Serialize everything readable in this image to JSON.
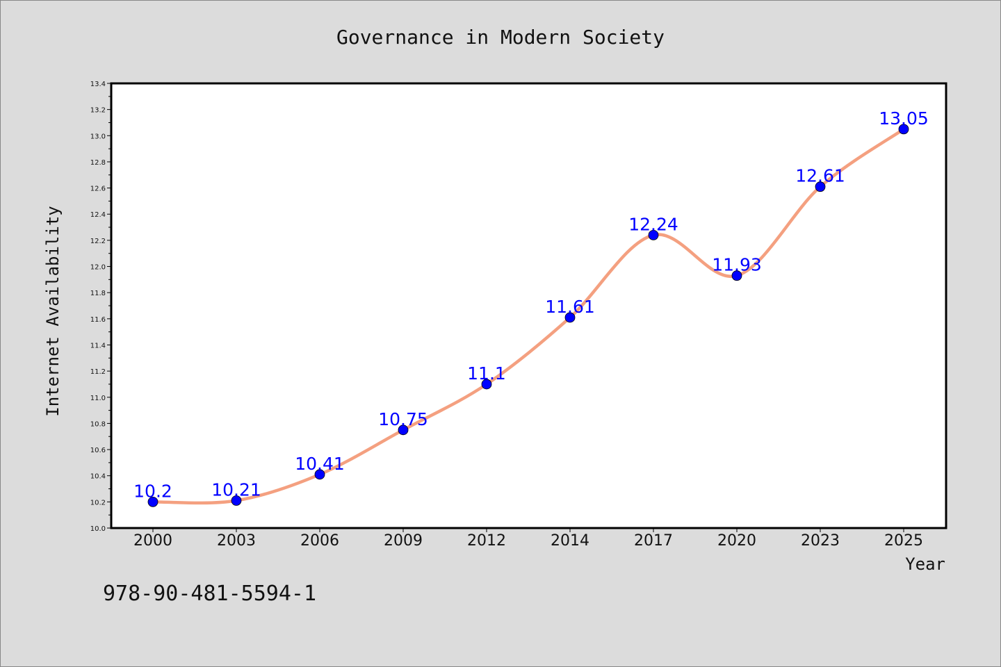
{
  "chart_data": {
    "type": "line",
    "title": "Governance in Modern Society",
    "xlabel": "Year",
    "ylabel": "Internet Availability",
    "categories": [
      "2000",
      "2003",
      "2006",
      "2009",
      "2012",
      "2014",
      "2017",
      "2020",
      "2023",
      "2025"
    ],
    "series": [
      {
        "values": [
          10.2,
          10.21,
          10.41,
          10.75,
          11.1,
          11.61,
          12.24,
          11.93,
          12.61,
          13.05
        ]
      }
    ],
    "data_labels": [
      "10.2",
      "10.21",
      "10.41",
      "10.75",
      "11.1",
      "11.61",
      "12.24",
      "11.93",
      "12.61",
      "13.05"
    ],
    "ylim": [
      10.0,
      13.4
    ],
    "yticks": [
      "10.0",
      "10.2",
      "10.4",
      "10.6",
      "10.8",
      "11.0",
      "11.2",
      "11.4",
      "11.6",
      "11.8",
      "12.0",
      "12.2",
      "12.4",
      "12.6",
      "12.8",
      "13.0",
      "13.2",
      "13.4"
    ],
    "grid": false,
    "line_color": "#f4a080",
    "marker_color": "#0000ff",
    "label_color": "#0000ff",
    "background_color": "#dcdcdc",
    "plot_background": "#ffffff"
  },
  "footer": {
    "isbn": "978-90-481-5594-1"
  }
}
